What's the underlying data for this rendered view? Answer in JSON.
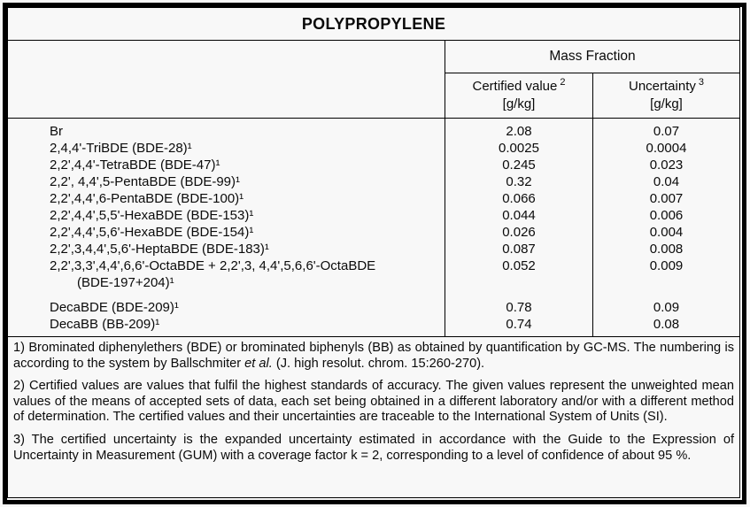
{
  "title": "POLYPROPYLENE",
  "colors": {
    "background": "#f8f8f8",
    "border": "#000000",
    "text": "#0a0a0a"
  },
  "table": {
    "group_header": "Mass Fraction",
    "columns": [
      {
        "label": "Certified value",
        "sup": "2",
        "unit": "[g/kg]"
      },
      {
        "label": "Uncertainty",
        "sup": "3",
        "unit": "[g/kg]"
      }
    ],
    "rows": [
      {
        "name": "Br",
        "certified_value": "2.08",
        "uncertainty": "0.07"
      },
      {
        "name": "2,4,4'-TriBDE (BDE-28)¹",
        "certified_value": "0.0025",
        "uncertainty": "0.0004"
      },
      {
        "name": "2,2',4,4'-TetraBDE (BDE-47)¹",
        "certified_value": "0.245",
        "uncertainty": "0.023"
      },
      {
        "name": "2,2', 4,4',5-PentaBDE (BDE-99)¹",
        "certified_value": "0.32",
        "uncertainty": "0.04"
      },
      {
        "name": "2,2',4,4',6-PentaBDE (BDE-100)¹",
        "certified_value": "0.066",
        "uncertainty": "0.007"
      },
      {
        "name": "2,2',4,4',5,5'-HexaBDE (BDE-153)¹",
        "certified_value": "0.044",
        "uncertainty": "0.006"
      },
      {
        "name": "2,2',4,4',5,6'-HexaBDE (BDE-154)¹",
        "certified_value": "0.026",
        "uncertainty": "0.004"
      },
      {
        "name": "2,2',3,4,4',5,6'-HeptaBDE (BDE-183)¹",
        "certified_value": "0.087",
        "uncertainty": "0.008"
      },
      {
        "name": "2,2',3,3',4,4',6,6'-OctaBDE + 2,2',3, 4,4',5,6,6'-OctaBDE",
        "name_line2": "(BDE-197+204)¹",
        "certified_value": "0.052",
        "uncertainty": "0.009",
        "gap_after": true
      },
      {
        "name": "DecaBDE (BDE-209)¹",
        "certified_value": "0.78",
        "uncertainty": "0.09"
      },
      {
        "name": "DecaBB (BB-209)¹",
        "certified_value": "0.74",
        "uncertainty": "0.08"
      }
    ]
  },
  "footnotes": {
    "note1": {
      "part1": "1) Brominated diphenylethers (BDE) or brominated biphenyls (BB) as obtained by quantification by GC-MS. The numbering is according to the system by Ballschmiter ",
      "italic": "et al.",
      "part2": " (J. high resolut. chrom. 15:260-270)."
    },
    "note2": "2) Certified values are values that fulfil the highest standards of accuracy. The given values represent the unweighted mean values of the means of accepted sets of data, each set being obtained in a different laboratory and/or with a different method of determination. The certified values and their uncertainties are traceable to the International System of Units (SI).",
    "note3": "3) The certified uncertainty is the expanded uncertainty estimated in accordance with the Guide to the Expression of Uncertainty in Measurement (GUM) with a coverage factor k = 2, corresponding to a level of confidence of about 95 %."
  }
}
